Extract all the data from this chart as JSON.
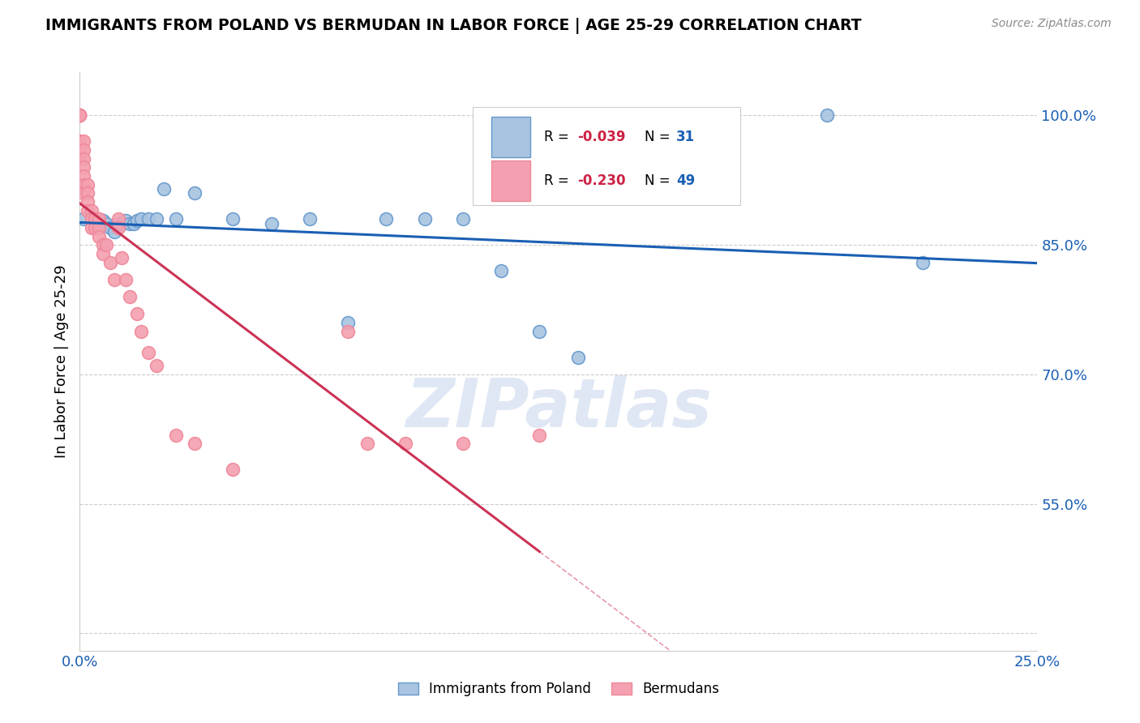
{
  "title": "IMMIGRANTS FROM POLAND VS BERMUDAN IN LABOR FORCE | AGE 25-29 CORRELATION CHART",
  "source": "Source: ZipAtlas.com",
  "ylabel": "In Labor Force | Age 25-29",
  "x_min": 0.0,
  "x_max": 0.25,
  "y_min": 0.38,
  "y_max": 1.05,
  "x_ticks": [
    0.0,
    0.05,
    0.1,
    0.15,
    0.2,
    0.25
  ],
  "y_ticks": [
    0.4,
    0.55,
    0.7,
    0.85,
    1.0
  ],
  "color_poland": "#a8c4e0",
  "color_poland_edge": "#6699cc",
  "color_bermuda": "#f4a0b0",
  "color_bermuda_edge": "#ee8899",
  "trendline_poland_color": "#1a5fb4",
  "trendline_bermuda_color": "#cc3355",
  "watermark": "ZIPatlas",
  "legend_label1": "Immigrants from Poland",
  "legend_label2": "Bermudans",
  "poland_x": [
    0.001,
    0.004,
    0.005,
    0.006,
    0.007,
    0.008,
    0.009,
    0.01,
    0.011,
    0.012,
    0.013,
    0.014,
    0.015,
    0.016,
    0.018,
    0.02,
    0.022,
    0.025,
    0.03,
    0.04,
    0.05,
    0.06,
    0.07,
    0.08,
    0.09,
    0.1,
    0.11,
    0.12,
    0.13,
    0.195,
    0.22
  ],
  "poland_y": [
    0.88,
    0.875,
    0.875,
    0.878,
    0.875,
    0.87,
    0.865,
    0.875,
    0.875,
    0.878,
    0.875,
    0.875,
    0.878,
    0.88,
    0.88,
    0.88,
    0.915,
    0.88,
    0.91,
    0.88,
    0.875,
    0.88,
    0.76,
    0.88,
    0.88,
    0.88,
    0.82,
    0.75,
    0.72,
    1.0,
    0.83
  ],
  "bermuda_x": [
    0.0,
    0.0,
    0.0,
    0.0,
    0.0,
    0.0,
    0.0,
    0.0,
    0.001,
    0.001,
    0.001,
    0.001,
    0.001,
    0.001,
    0.001,
    0.002,
    0.002,
    0.002,
    0.002,
    0.003,
    0.003,
    0.003,
    0.004,
    0.004,
    0.005,
    0.005,
    0.005,
    0.006,
    0.006,
    0.007,
    0.008,
    0.009,
    0.01,
    0.01,
    0.011,
    0.012,
    0.013,
    0.015,
    0.016,
    0.018,
    0.02,
    0.025,
    0.03,
    0.04,
    0.07,
    0.075,
    0.085,
    0.1,
    0.12
  ],
  "bermuda_y": [
    1.0,
    1.0,
    1.0,
    1.0,
    1.0,
    0.97,
    0.96,
    0.95,
    0.97,
    0.96,
    0.95,
    0.94,
    0.93,
    0.92,
    0.91,
    0.92,
    0.91,
    0.9,
    0.89,
    0.89,
    0.88,
    0.87,
    0.88,
    0.87,
    0.88,
    0.87,
    0.86,
    0.85,
    0.84,
    0.85,
    0.83,
    0.81,
    0.88,
    0.87,
    0.835,
    0.81,
    0.79,
    0.77,
    0.75,
    0.725,
    0.71,
    0.63,
    0.62,
    0.59,
    0.75,
    0.62,
    0.62,
    0.62,
    0.63
  ],
  "diag_line_color": "#ddbbcc"
}
